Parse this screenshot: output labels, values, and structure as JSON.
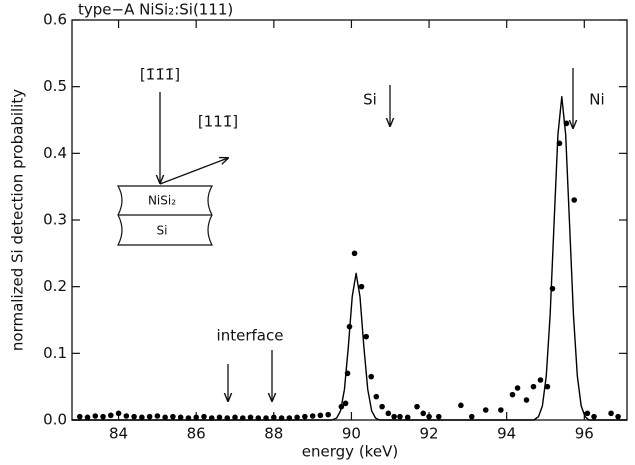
{
  "chart_data": {
    "type": "scatter",
    "title": "type−A NiSi₂:Si(111)",
    "xlabel": "energy (keV)",
    "ylabel": "normalized Si detection probability",
    "annotations": [
      "Si",
      "Ni",
      "interface",
      "[1̄1̄1̄]",
      "[111̄]",
      "NiSi₂",
      "Si"
    ],
    "xlim": [
      82.8,
      97.1
    ],
    "ylim": [
      0,
      0.6
    ],
    "xticks": [
      84,
      86,
      88,
      90,
      92,
      94,
      96
    ],
    "yticks": [
      {
        "value": 0,
        "label": "0.0"
      },
      0.1,
      0.2,
      0.3,
      0.4,
      0.5,
      0.6
    ],
    "series": [
      {
        "type": "scatter",
        "color": "#000",
        "x": [
          83.0,
          83.2,
          83.4,
          83.6,
          83.8,
          84.0,
          84.2,
          84.4,
          84.6,
          84.8,
          85.0,
          85.2,
          85.4,
          85.6,
          85.8,
          86.0,
          86.2,
          86.4,
          86.6,
          86.8,
          87.0,
          87.2,
          87.4,
          87.6,
          87.8,
          88.0,
          88.2,
          88.4,
          88.6,
          88.8,
          89.0,
          89.2,
          89.4,
          89.74,
          89.85,
          89.9,
          89.95,
          90.08,
          90.26,
          90.38,
          90.51,
          90.64,
          90.79,
          90.95,
          91.1,
          91.25,
          91.45,
          91.69,
          91.85,
          92.0,
          92.25,
          92.82,
          93.1,
          93.46,
          93.85,
          94.15,
          94.28,
          94.51,
          94.69,
          94.87,
          95.05,
          95.18,
          95.36,
          95.54,
          95.74,
          96.08,
          96.25,
          96.69,
          96.87
        ],
        "values": [
          0.005,
          0.004,
          0.006,
          0.005,
          0.007,
          0.01,
          0.006,
          0.005,
          0.004,
          0.005,
          0.006,
          0.004,
          0.005,
          0.004,
          0.003,
          0.004,
          0.005,
          0.003,
          0.004,
          0.003,
          0.004,
          0.003,
          0.004,
          0.003,
          0.003,
          0.004,
          0.003,
          0.003,
          0.004,
          0.005,
          0.006,
          0.007,
          0.008,
          0.02,
          0.025,
          0.07,
          0.14,
          0.25,
          0.2,
          0.125,
          0.065,
          0.035,
          0.02,
          0.01,
          0.005,
          0.005,
          0.004,
          0.02,
          0.01,
          0.005,
          0.005,
          0.022,
          0.005,
          0.015,
          0.015,
          0.038,
          0.048,
          0.03,
          0.05,
          0.06,
          0.05,
          0.197,
          0.415,
          0.445,
          0.33,
          0.01,
          0.005,
          0.01,
          0.005
        ]
      },
      {
        "type": "line",
        "color": "#000",
        "x": [
          82.8,
          89.5,
          89.62,
          89.72,
          89.82,
          89.92,
          90.02,
          90.12,
          90.22,
          90.32,
          90.42,
          90.52,
          90.62,
          90.72,
          94.7,
          94.82,
          94.92,
          95.02,
          95.12,
          95.22,
          95.32,
          95.42,
          95.52,
          95.62,
          95.72,
          95.82,
          95.92,
          96.02,
          96.12,
          97.1
        ],
        "values": [
          0,
          0,
          0.003,
          0.014,
          0.046,
          0.11,
          0.185,
          0.22,
          0.185,
          0.11,
          0.046,
          0.014,
          0.003,
          0,
          0,
          0.005,
          0.021,
          0.066,
          0.158,
          0.294,
          0.428,
          0.485,
          0.428,
          0.294,
          0.158,
          0.066,
          0.021,
          0.005,
          0,
          0
        ]
      }
    ]
  }
}
